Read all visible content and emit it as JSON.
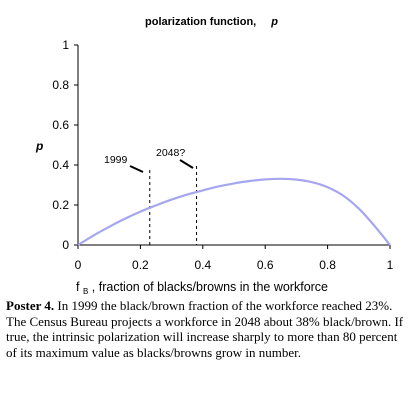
{
  "chart_data": {
    "type": "line",
    "title": "polarization function,",
    "title_symbol": "p",
    "ylabel": "p",
    "xlabel_symbol": "f",
    "xlabel_subscript": "B",
    "xlabel_text": ",   fraction of blacks/browns in the workforce",
    "xlim": [
      0,
      1
    ],
    "ylim": [
      0,
      1
    ],
    "x_ticks": [
      0,
      0.2,
      0.4,
      0.6,
      0.8,
      1
    ],
    "x_tick_labels": [
      "0",
      "0.2",
      "0.4",
      "0.6",
      "0.8",
      "1"
    ],
    "y_ticks": [
      0,
      0.2,
      0.4,
      0.6,
      0.8,
      1
    ],
    "y_tick_labels": [
      "0",
      "0.2",
      "0.4",
      "0.6",
      "0.8",
      "1"
    ],
    "grid": false,
    "curve_color": "#a6a6f0",
    "series": [
      {
        "x": [
          0,
          0.05,
          0.1,
          0.15,
          0.2,
          0.25,
          0.3,
          0.35,
          0.4,
          0.45,
          0.5,
          0.55,
          0.6,
          0.65,
          0.7,
          0.75,
          0.8,
          0.85,
          0.9,
          0.95,
          1
        ],
        "values": [
          0,
          0.048,
          0.091,
          0.131,
          0.167,
          0.198,
          0.227,
          0.252,
          0.273,
          0.293,
          0.308,
          0.32,
          0.328,
          0.331,
          0.327,
          0.314,
          0.289,
          0.247,
          0.182,
          0.096,
          0
        ]
      }
    ],
    "annotations": [
      {
        "label": "1999",
        "x": 0.23
      },
      {
        "label": "2048?",
        "x": 0.38
      }
    ]
  },
  "caption": {
    "label": "Poster 4.",
    "text": " In 1999 the black/brown fraction of the workforce reached 23%. The Census Bureau projects a workforce in 2048 about 38% black/brown. If true, the intrinsic polarization will increase sharply to more than 80 percent of its maximum value as blacks/browns grow in number."
  }
}
